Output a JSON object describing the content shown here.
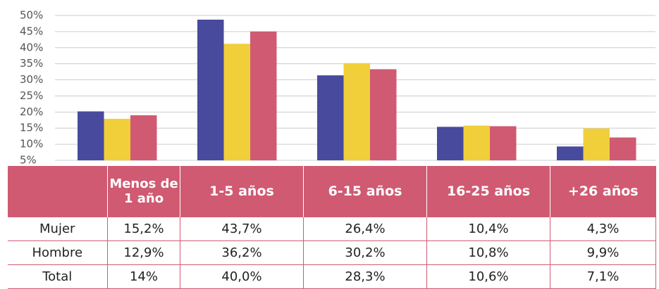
{
  "chart_data": {
    "type": "bar",
    "categories": [
      "Menos de 1 año",
      "1-5 años",
      "6-15 años",
      "16-25 años",
      "+26 años"
    ],
    "series": [
      {
        "color": "#474a9d",
        "values": [
          20.2,
          48.7,
          31.4,
          15.4,
          9.3
        ]
      },
      {
        "color": "#f0cf3a",
        "values": [
          17.9,
          41.2,
          35.2,
          15.8,
          14.9
        ]
      },
      {
        "color": "#d05a72",
        "values": [
          19,
          45,
          33.3,
          15.6,
          12.1
        ]
      }
    ],
    "ylim": [
      5,
      50
    ],
    "yticks": [
      {
        "value": 5,
        "label": "5%"
      },
      {
        "value": 10,
        "label": "10%"
      },
      {
        "value": 15,
        "label": "15%"
      },
      {
        "value": 20,
        "label": "20%"
      },
      {
        "value": 25,
        "label": "25%"
      },
      {
        "value": 30,
        "label": "30%"
      },
      {
        "value": 35,
        "label": "35%"
      },
      {
        "value": 40,
        "label": "40%"
      },
      {
        "value": 45,
        "label": "45%"
      },
      {
        "value": 50,
        "label": "50%"
      }
    ],
    "grid": true
  },
  "table": {
    "rows": [
      [
        "Mujer",
        "15,2%",
        "43,7%",
        "26,4%",
        "10,4%",
        "4,3%"
      ],
      [
        "Hombre",
        "12,9%",
        "36,2%",
        "30,2%",
        "10,8%",
        "9,9%"
      ],
      [
        "Total",
        "14%",
        "40,0%",
        "28,3%",
        "10,6%",
        "7,1%"
      ]
    ]
  }
}
